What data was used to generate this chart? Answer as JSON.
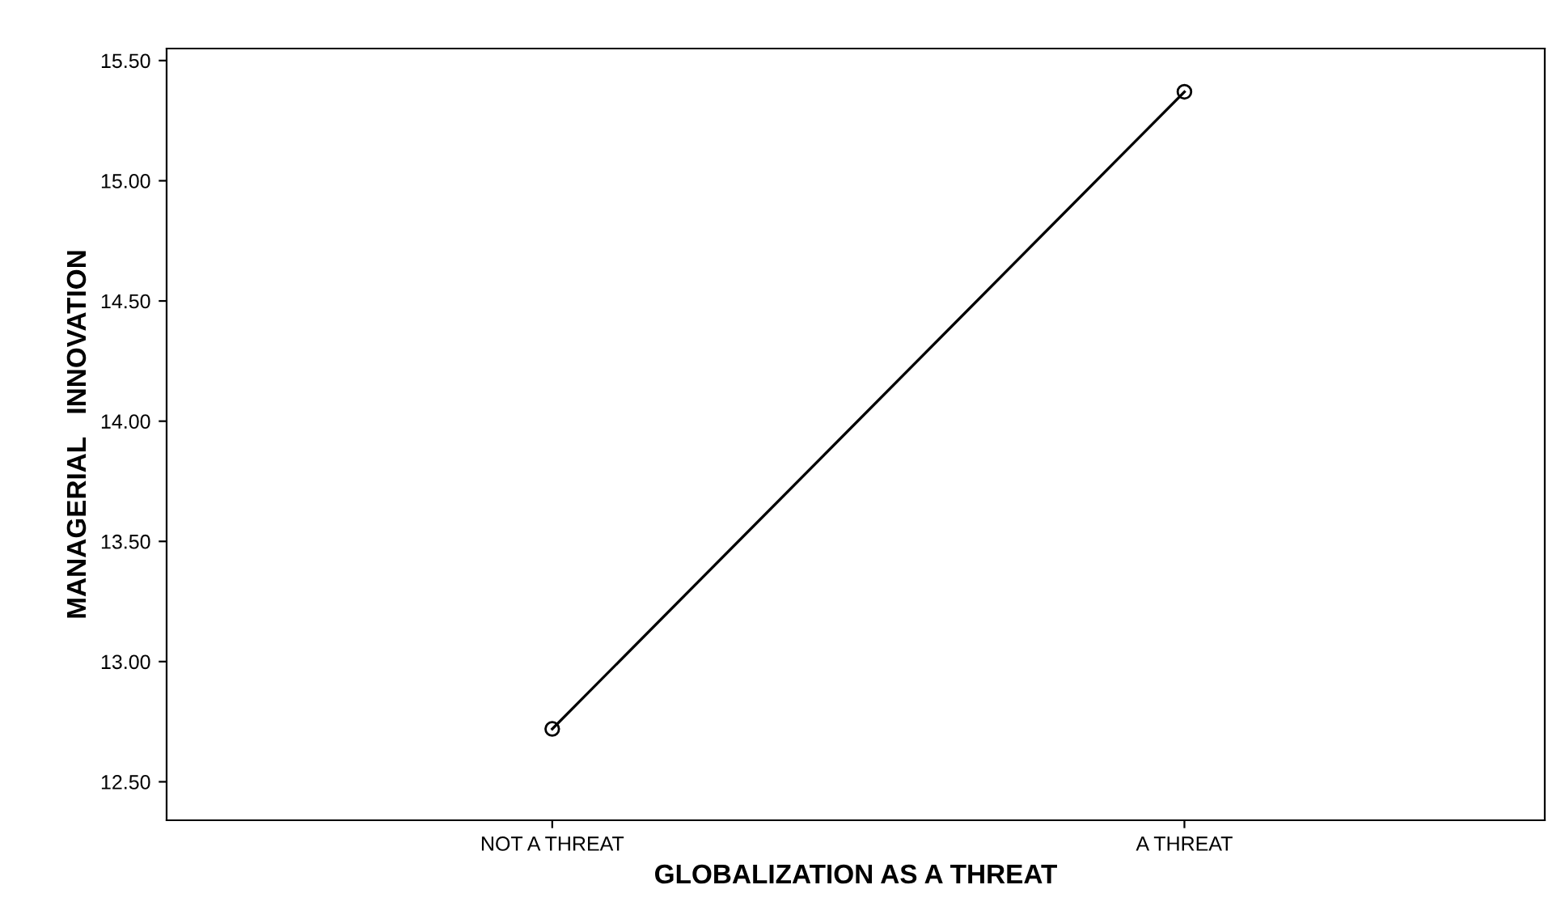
{
  "chart_data": {
    "type": "line",
    "xlabel": "GLOBALIZATION AS A THREAT",
    "ylabel": "MANAGERIAL   INNOVATION",
    "categories": [
      "NOT A THREAT",
      "A THREAT"
    ],
    "series": [
      {
        "color": "#000000",
        "values": [
          12.72,
          15.37
        ]
      }
    ],
    "marker": "circle",
    "line_style": "solid",
    "grid": false,
    "legend": false,
    "ylim": [
      12.34,
      15.55
    ],
    "yticks": [
      {
        "value": 12.5,
        "label": "12.50"
      },
      {
        "value": 13.0,
        "label": "13.00"
      },
      {
        "value": 13.5,
        "label": "13.50"
      },
      {
        "value": 14.0,
        "label": "14.00"
      },
      {
        "value": 14.5,
        "label": "14.50"
      },
      {
        "value": 15.0,
        "label": "15.00"
      },
      {
        "value": 15.5,
        "label": "15.50"
      }
    ]
  }
}
